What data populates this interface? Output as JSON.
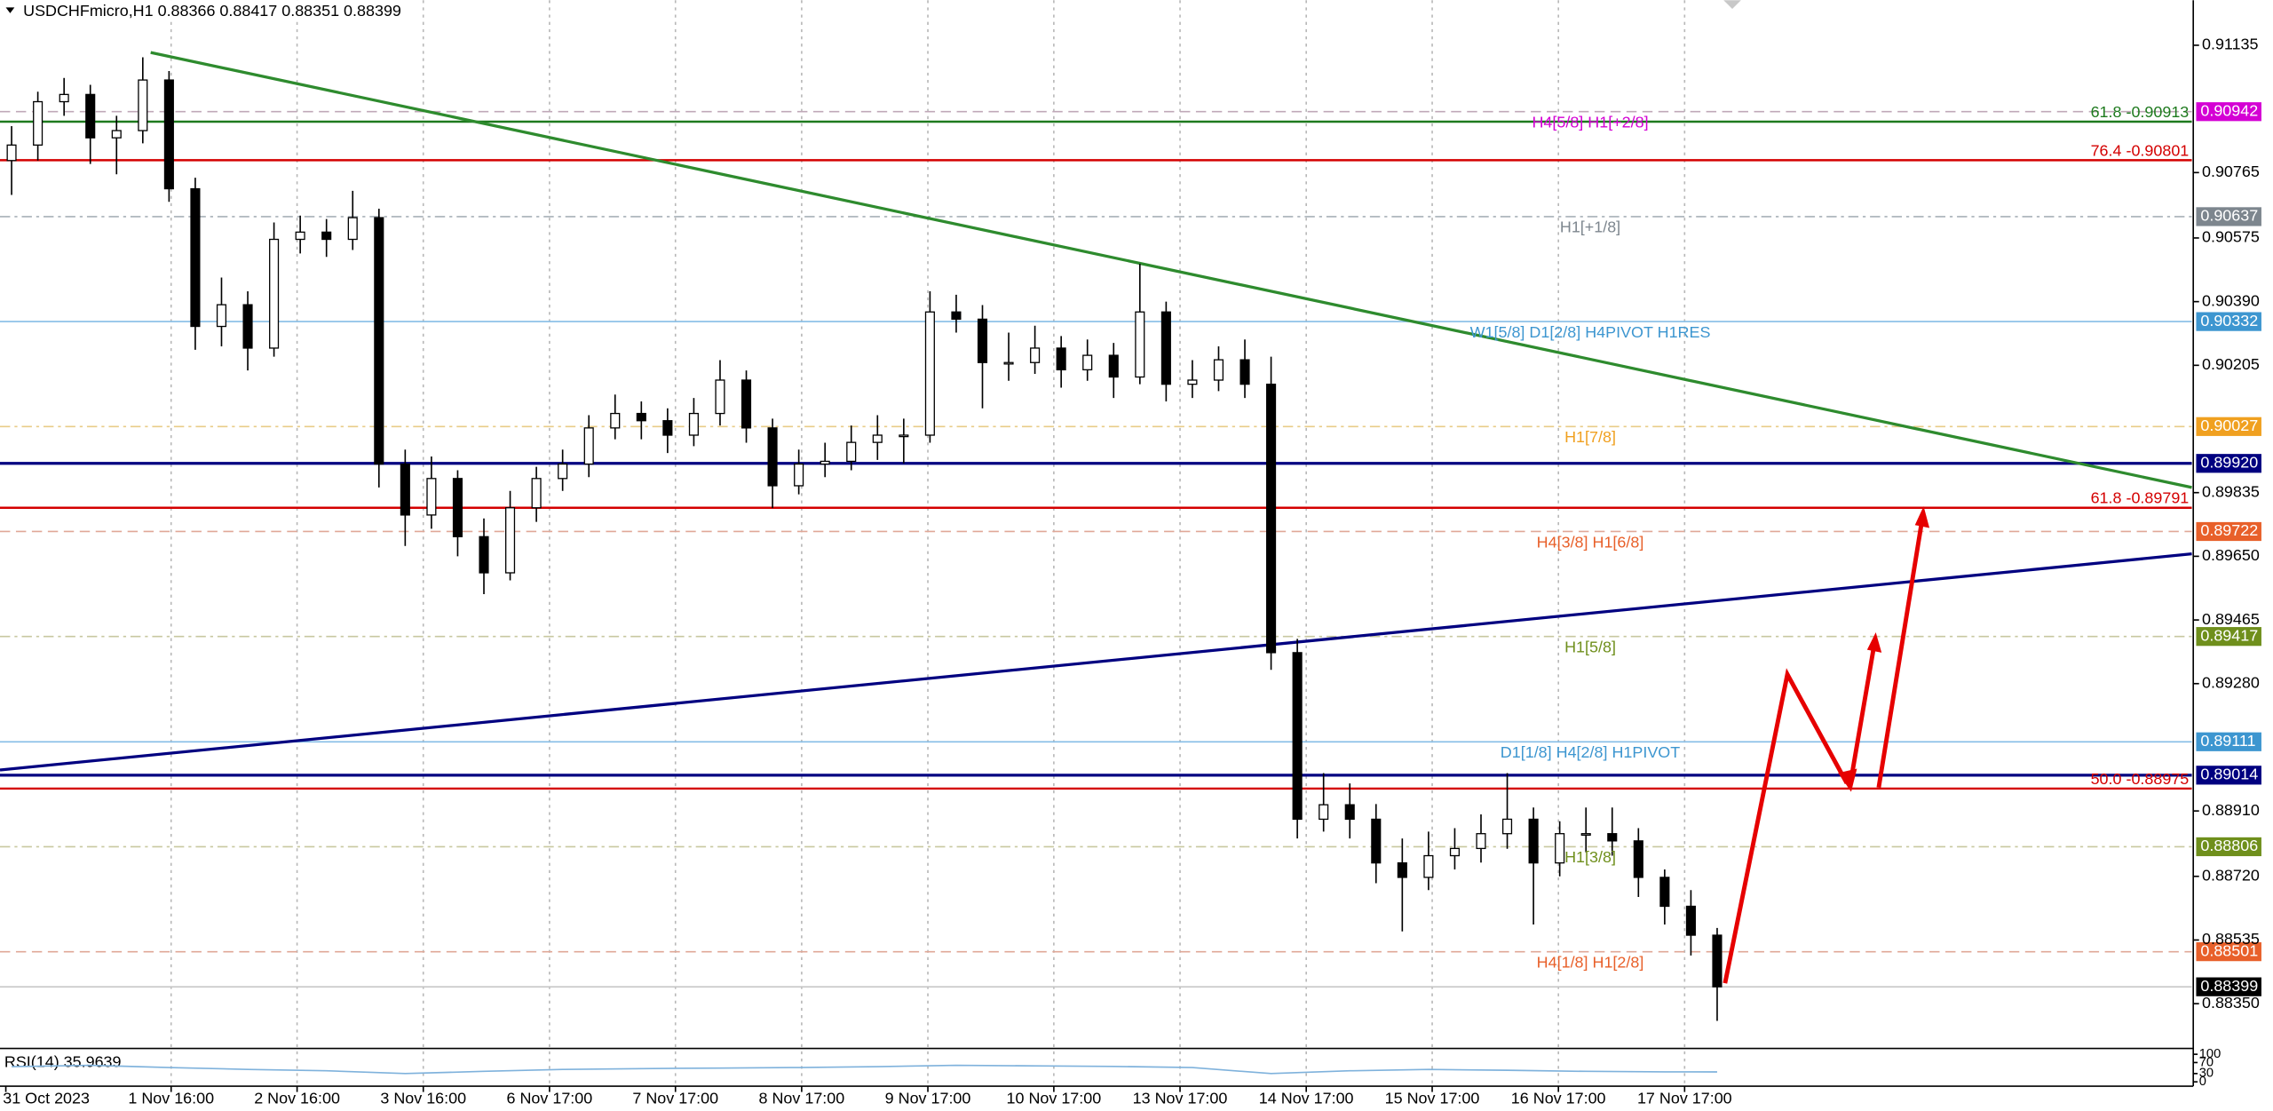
{
  "chart_data": {
    "type": "candlestick",
    "title": "USDCHFmicro,H1  0.88366 0.88417 0.88351 0.88399",
    "xlim": [
      -0.442,
      83.09
    ],
    "ylim": [
      0.88224,
      0.91266
    ],
    "yticks": [
      0.91135,
      0.90765,
      0.90575,
      {
        "value": 0.9039,
        "label": "0.90390"
      },
      0.90205,
      0.89835,
      {
        "value": 0.8965,
        "label": "0.89650"
      },
      0.89465,
      {
        "value": 0.8928,
        "label": "0.89280"
      },
      {
        "value": 0.8891,
        "label": "0.88910"
      },
      {
        "value": 0.8872,
        "label": "0.88720"
      },
      0.88535,
      {
        "value": 0.8835,
        "label": "0.88350"
      }
    ],
    "xticks": [
      {
        "value": -0.22,
        "label": "31 Oct 2023"
      },
      {
        "value": 6.08,
        "label": "1 Nov 16:00"
      },
      {
        "value": 10.88,
        "label": "2 Nov 16:00"
      },
      {
        "value": 15.69,
        "label": "3 Nov 16:00"
      },
      {
        "value": 20.5,
        "label": "6 Nov 17:00"
      },
      {
        "value": 25.3,
        "label": "7 Nov 17:00"
      },
      {
        "value": 30.11,
        "label": "8 Nov 17:00"
      },
      {
        "value": 34.92,
        "label": "9 Nov 17:00"
      },
      {
        "value": 39.72,
        "label": "10 Nov 17:00"
      },
      {
        "value": 44.53,
        "label": "13 Nov 17:00"
      },
      {
        "value": 49.34,
        "label": "14 Nov 17:00"
      },
      {
        "value": 54.14,
        "label": "15 Nov 17:00"
      },
      {
        "value": 58.95,
        "label": "16 Nov 17:00"
      },
      {
        "value": 63.76,
        "label": "17 Nov 17:00"
      }
    ],
    "grid": true,
    "up_color": "#ffffff",
    "down_color": "#000000",
    "ohlc": [
      [
        0.908,
        0.909,
        0.907,
        0.90845
      ],
      [
        0.90845,
        0.91,
        0.908,
        0.90971
      ],
      [
        0.90971,
        0.9104,
        0.9093,
        0.90992
      ],
      [
        0.90992,
        0.9102,
        0.9079,
        0.90866
      ],
      [
        0.90866,
        0.9093,
        0.9076,
        0.90887
      ],
      [
        0.90887,
        0.911,
        0.9085,
        0.91034
      ],
      [
        0.91034,
        0.9106,
        0.9068,
        0.90718
      ],
      [
        0.90718,
        0.9075,
        0.9025,
        0.90318
      ],
      [
        0.90318,
        0.9046,
        0.9026,
        0.90381
      ],
      [
        0.90381,
        0.9042,
        0.9019,
        0.90255
      ],
      [
        0.90255,
        0.9062,
        0.9023,
        0.90571
      ],
      [
        0.90571,
        0.9064,
        0.9053,
        0.90592
      ],
      [
        0.90592,
        0.9063,
        0.9052,
        0.90571
      ],
      [
        0.90571,
        0.90712,
        0.9054,
        0.90634
      ],
      [
        0.90634,
        0.9066,
        0.8985,
        0.89918
      ],
      [
        0.89918,
        0.8996,
        0.8968,
        0.8977
      ],
      [
        0.8977,
        0.8994,
        0.8973,
        0.89876
      ],
      [
        0.89876,
        0.899,
        0.8965,
        0.89707
      ],
      [
        0.89707,
        0.8976,
        0.8954,
        0.89602
      ],
      [
        0.89602,
        0.8984,
        0.8958,
        0.89791
      ],
      [
        0.89791,
        0.8991,
        0.8975,
        0.89876
      ],
      [
        0.89876,
        0.8996,
        0.8984,
        0.89918
      ],
      [
        0.89918,
        0.9006,
        0.8988,
        0.90023
      ],
      [
        0.90023,
        0.9012,
        0.8999,
        0.90065
      ],
      [
        0.90065,
        0.901,
        0.8999,
        0.90044
      ],
      [
        0.90044,
        0.9008,
        0.8995,
        0.90002
      ],
      [
        0.90002,
        0.9011,
        0.8997,
        0.90065
      ],
      [
        0.90065,
        0.9022,
        0.9003,
        0.90162
      ],
      [
        0.90162,
        0.9019,
        0.8998,
        0.90023
      ],
      [
        0.90023,
        0.9005,
        0.8979,
        0.89855
      ],
      [
        0.89855,
        0.8996,
        0.8983,
        0.89918
      ],
      [
        0.89918,
        0.8998,
        0.8988,
        0.89926
      ],
      [
        0.89926,
        0.9003,
        0.899,
        0.89981
      ],
      [
        0.89981,
        0.9006,
        0.8993,
        0.90002
      ],
      [
        0.90002,
        0.9005,
        0.8992,
        0.90002
      ],
      [
        0.90002,
        0.9042,
        0.8998,
        0.9036
      ],
      [
        0.9036,
        0.9041,
        0.903,
        0.90339
      ],
      [
        0.90339,
        0.9038,
        0.9008,
        0.90213
      ],
      [
        0.90213,
        0.903,
        0.9016,
        0.90213
      ],
      [
        0.90213,
        0.9032,
        0.9018,
        0.90255
      ],
      [
        0.90255,
        0.9029,
        0.9014,
        0.90192
      ],
      [
        0.90192,
        0.9028,
        0.9016,
        0.90234
      ],
      [
        0.90234,
        0.9027,
        0.9011,
        0.90171
      ],
      [
        0.90171,
        0.905,
        0.9015,
        0.9036
      ],
      [
        0.9036,
        0.9039,
        0.901,
        0.9015
      ],
      [
        0.9015,
        0.9022,
        0.9011,
        0.90162
      ],
      [
        0.90162,
        0.9026,
        0.9013,
        0.90221
      ],
      [
        0.90221,
        0.9028,
        0.9011,
        0.9015
      ],
      [
        0.9015,
        0.9023,
        0.8932,
        0.8937
      ],
      [
        0.8937,
        0.8941,
        0.8883,
        0.88886
      ],
      [
        0.88886,
        0.8902,
        0.8885,
        0.88928
      ],
      [
        0.88928,
        0.8899,
        0.8883,
        0.88886
      ],
      [
        0.88886,
        0.8893,
        0.887,
        0.88759
      ],
      [
        0.88759,
        0.8883,
        0.8856,
        0.88717
      ],
      [
        0.88717,
        0.8885,
        0.8868,
        0.8878
      ],
      [
        0.8878,
        0.8886,
        0.8874,
        0.88801
      ],
      [
        0.88801,
        0.889,
        0.8876,
        0.88844
      ],
      [
        0.88844,
        0.8902,
        0.888,
        0.88886
      ],
      [
        0.88886,
        0.8892,
        0.8858,
        0.88759
      ],
      [
        0.88759,
        0.8888,
        0.8872,
        0.88844
      ],
      [
        0.88844,
        0.8892,
        0.8879,
        0.88844
      ],
      [
        0.88844,
        0.8892,
        0.8878,
        0.88823
      ],
      [
        0.88823,
        0.8886,
        0.8866,
        0.88717
      ],
      [
        0.88717,
        0.8874,
        0.8858,
        0.88633
      ],
      [
        0.88633,
        0.8868,
        0.8849,
        0.88549
      ],
      [
        0.88549,
        0.8857,
        0.883,
        0.88399
      ]
    ],
    "levels": [
      {
        "value": 0.90942,
        "value_label": "0.90942",
        "label": "H4[5/8] H1[+2/8]",
        "color": "#d400d4",
        "line_color": "#c0a8b8",
        "line": "dash"
      },
      {
        "value": 0.90637,
        "value_label": "0.90637",
        "label": "H1[+1/8]",
        "color": "#7d868e",
        "line_color": "#a8b0b8",
        "line": "dashdot"
      },
      {
        "value": 0.90332,
        "value_label": "0.90332",
        "label": "W1[5/8] D1[2/8] H4PIVOT H1RES",
        "color": "#3d96d0",
        "line_color": "#86bde6",
        "line": "solid"
      },
      {
        "value": 0.90027,
        "value_label": "0.90027",
        "label": "H1[7/8]",
        "color": "#f0a020",
        "line_color": "#e8cc88",
        "line": "dashdot"
      },
      {
        "value": 0.8992,
        "value_label": "0.89920",
        "color": "#000080",
        "line_color": "#000080",
        "line": "thick"
      },
      {
        "value": 0.89722,
        "value_label": "0.89722",
        "label": "H4[3/8] H1[6/8]",
        "color": "#e8602a",
        "line_color": "#e0a898",
        "line": "dash"
      },
      {
        "value": 0.89417,
        "value_label": "0.89417",
        "label": "H1[5/8]",
        "color": "#6f8f1c",
        "line_color": "#c8c8a0",
        "line": "dashdot"
      },
      {
        "value": 0.89111,
        "value_label": "0.89111",
        "label": "D1[1/8] H4[2/8] H1PIVOT",
        "color": "#3d96d0",
        "line_color": "#86bde6",
        "line": "solid"
      },
      {
        "value": 0.89014,
        "value_label": "0.89014",
        "color": "#000080",
        "line_color": "#000080",
        "line": "thick"
      },
      {
        "value": 0.88806,
        "value_label": "0.88806",
        "label": "H1[3/8]",
        "color": "#6f8f1c",
        "line_color": "#c8c8a0",
        "line": "dashdot"
      },
      {
        "value": 0.88501,
        "value_label": "0.88501",
        "label": "H4[1/8] H1[2/8]",
        "color": "#e8602a",
        "line_color": "#e0a898",
        "line": "dash"
      },
      {
        "value": 0.88399,
        "value_label": "0.88399",
        "color": "#000000",
        "line_color": "#c8c8c8",
        "line": "solid"
      }
    ],
    "fib_levels": [
      {
        "value": 0.90913,
        "label": "61.8 -0.90913",
        "color": "#1e7a1e"
      },
      {
        "value": 0.90801,
        "label": "76.4 -0.90801",
        "color": "#d40000"
      },
      {
        "value": 0.89791,
        "label": "61.8 -0.89791",
        "color": "#d40000"
      },
      {
        "value": 0.88975,
        "label": "50.0 -0.88975",
        "color": "#d40000"
      }
    ],
    "trendlines": [
      {
        "x": [
          5.3,
          83.09
        ],
        "values": [
          0.91114,
          0.8985
        ],
        "color": "#2e8b2e"
      },
      {
        "x": [
          -0.442,
          83.09
        ],
        "values": [
          0.89029,
          0.89657
        ],
        "color": "#000080"
      }
    ],
    "rsi": {
      "label": "RSI(14) 35.9639",
      "ylim": [
        0,
        100
      ],
      "yticks": [
        100,
        70,
        30,
        0
      ],
      "color": "#7fb2dc",
      "x": [
        0,
        3,
        6,
        9,
        12,
        15,
        18,
        21,
        24,
        27,
        30,
        33,
        36,
        39,
        42,
        45,
        48,
        51,
        54,
        57,
        60,
        63,
        65
      ],
      "values": [
        55,
        60,
        52,
        45,
        40,
        30,
        38,
        45,
        48,
        50,
        52,
        55,
        60,
        58,
        56,
        52,
        30,
        40,
        45,
        42,
        38,
        36,
        35.9639
      ]
    }
  }
}
